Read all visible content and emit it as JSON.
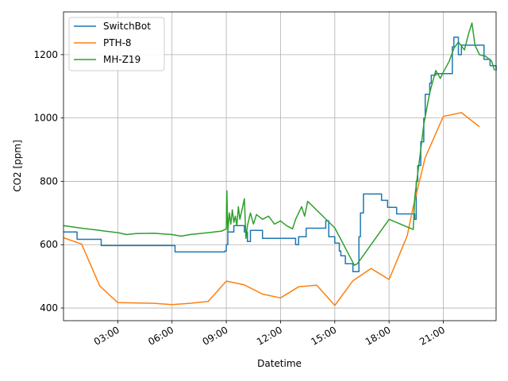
{
  "chart_data": {
    "type": "line",
    "title": "",
    "xlabel": "Datetime",
    "ylabel": "CO2 [ppm]",
    "x_unit": "hours",
    "xlim": [
      "00:00",
      "23:55"
    ],
    "ylim": [
      360,
      1335
    ],
    "grid": true,
    "legend_position": "top-left",
    "xticks": [
      "03:00",
      "06:00",
      "09:00",
      "12:00",
      "15:00",
      "18:00",
      "21:00"
    ],
    "yticks": [
      "400",
      "600",
      "800",
      "1000",
      "1200"
    ],
    "series": [
      {
        "name": "SwitchBot",
        "color": "#1f77b4",
        "step": true,
        "points": [
          [
            "00:00",
            640
          ],
          [
            "00:45",
            617
          ],
          [
            "02:05",
            597
          ],
          [
            "06:10",
            577
          ],
          [
            "08:55",
            580
          ],
          [
            "09:00",
            600
          ],
          [
            "09:05",
            640
          ],
          [
            "09:25",
            660
          ],
          [
            "10:00",
            640
          ],
          [
            "10:10",
            610
          ],
          [
            "10:20",
            645
          ],
          [
            "11:00",
            620
          ],
          [
            "12:50",
            600
          ],
          [
            "13:00",
            625
          ],
          [
            "13:25",
            652
          ],
          [
            "14:30",
            675
          ],
          [
            "14:40",
            625
          ],
          [
            "15:00",
            605
          ],
          [
            "15:15",
            580
          ],
          [
            "15:20",
            565
          ],
          [
            "15:35",
            540
          ],
          [
            "16:00",
            515
          ],
          [
            "16:20",
            625
          ],
          [
            "16:25",
            700
          ],
          [
            "16:35",
            760
          ],
          [
            "17:35",
            740
          ],
          [
            "17:55",
            718
          ],
          [
            "18:25",
            697
          ],
          [
            "19:25",
            680
          ],
          [
            "19:30",
            800
          ],
          [
            "19:35",
            850
          ],
          [
            "19:45",
            925
          ],
          [
            "19:55",
            1000
          ],
          [
            "20:00",
            1075
          ],
          [
            "20:15",
            1110
          ],
          [
            "20:20",
            1135
          ],
          [
            "20:35",
            1140
          ],
          [
            "21:30",
            1225
          ],
          [
            "21:35",
            1255
          ],
          [
            "21:50",
            1200
          ],
          [
            "22:00",
            1230
          ],
          [
            "23:15",
            1185
          ],
          [
            "23:35",
            1165
          ],
          [
            "23:55",
            1150
          ]
        ]
      },
      {
        "name": "PTH-8",
        "color": "#ff7f0e",
        "step": false,
        "points": [
          [
            "00:00",
            622
          ],
          [
            "01:00",
            602
          ],
          [
            "02:00",
            470
          ],
          [
            "03:00",
            417
          ],
          [
            "05:00",
            415
          ],
          [
            "06:00",
            411
          ],
          [
            "07:00",
            415
          ],
          [
            "08:00",
            421
          ],
          [
            "09:00",
            485
          ],
          [
            "10:00",
            473
          ],
          [
            "11:00",
            444
          ],
          [
            "12:00",
            432
          ],
          [
            "13:00",
            467
          ],
          [
            "14:00",
            472
          ],
          [
            "15:00",
            408
          ],
          [
            "16:00",
            486
          ],
          [
            "17:00",
            525
          ],
          [
            "18:00",
            490
          ],
          [
            "19:00",
            628
          ],
          [
            "19:20",
            720
          ],
          [
            "20:00",
            875
          ],
          [
            "21:00",
            1005
          ],
          [
            "22:00",
            1017
          ],
          [
            "23:00",
            972
          ]
        ]
      },
      {
        "name": "MH-Z19",
        "color": "#2ca02c",
        "step": false,
        "points": [
          [
            "00:00",
            660
          ],
          [
            "01:00",
            652
          ],
          [
            "02:00",
            645
          ],
          [
            "03:00",
            638
          ],
          [
            "03:30",
            632
          ],
          [
            "04:00",
            635
          ],
          [
            "05:00",
            636
          ],
          [
            "06:00",
            632
          ],
          [
            "06:30",
            627
          ],
          [
            "07:00",
            632
          ],
          [
            "08:00",
            638
          ],
          [
            "08:45",
            643
          ],
          [
            "09:00",
            650
          ],
          [
            "09:02",
            770
          ],
          [
            "09:05",
            640
          ],
          [
            "09:10",
            700
          ],
          [
            "09:15",
            665
          ],
          [
            "09:20",
            710
          ],
          [
            "09:25",
            670
          ],
          [
            "09:30",
            690
          ],
          [
            "09:35",
            660
          ],
          [
            "09:40",
            720
          ],
          [
            "09:45",
            680
          ],
          [
            "10:00",
            745
          ],
          [
            "10:05",
            620
          ],
          [
            "10:10",
            660
          ],
          [
            "10:20",
            700
          ],
          [
            "10:30",
            665
          ],
          [
            "10:40",
            695
          ],
          [
            "11:00",
            680
          ],
          [
            "11:20",
            690
          ],
          [
            "11:40",
            665
          ],
          [
            "12:00",
            675
          ],
          [
            "12:20",
            660
          ],
          [
            "12:40",
            650
          ],
          [
            "12:50",
            680
          ],
          [
            "13:00",
            700
          ],
          [
            "13:10",
            720
          ],
          [
            "13:20",
            690
          ],
          [
            "13:30",
            737
          ],
          [
            "15:00",
            653
          ],
          [
            "16:05",
            535
          ],
          [
            "16:15",
            540
          ],
          [
            "18:00",
            680
          ],
          [
            "19:20",
            648
          ],
          [
            "19:25",
            750
          ],
          [
            "19:45",
            900
          ],
          [
            "19:55",
            980
          ],
          [
            "20:15",
            1080
          ],
          [
            "20:35",
            1150
          ],
          [
            "20:50",
            1125
          ],
          [
            "21:00",
            1145
          ],
          [
            "21:20",
            1180
          ],
          [
            "21:35",
            1220
          ],
          [
            "21:50",
            1240
          ],
          [
            "22:10",
            1215
          ],
          [
            "22:25",
            1270
          ],
          [
            "22:35",
            1300
          ],
          [
            "22:45",
            1230
          ],
          [
            "23:00",
            1200
          ],
          [
            "23:20",
            1195
          ],
          [
            "23:40",
            1180
          ],
          [
            "23:50",
            1150
          ]
        ]
      }
    ]
  }
}
